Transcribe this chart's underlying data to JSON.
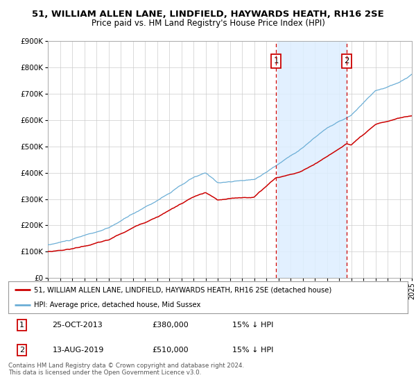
{
  "title": "51, WILLIAM ALLEN LANE, LINDFIELD, HAYWARDS HEATH, RH16 2SE",
  "subtitle": "Price paid vs. HM Land Registry's House Price Index (HPI)",
  "ylim": [
    0,
    900000
  ],
  "yticks": [
    0,
    100000,
    200000,
    300000,
    400000,
    500000,
    600000,
    700000,
    800000,
    900000
  ],
  "ytick_labels": [
    "£0",
    "£100K",
    "£200K",
    "£300K",
    "£400K",
    "£500K",
    "£600K",
    "£700K",
    "£800K",
    "£900K"
  ],
  "hpi_color": "#6baed6",
  "price_color": "#cc0000",
  "shade_color": "#ddeeff",
  "vline_color": "#cc0000",
  "purchase1_year": 2013.82,
  "purchase1_price": 380000,
  "purchase2_year": 2019.62,
  "purchase2_price": 510000,
  "legend_line1": "51, WILLIAM ALLEN LANE, LINDFIELD, HAYWARDS HEATH, RH16 2SE (detached house)",
  "legend_line2": "HPI: Average price, detached house, Mid Sussex",
  "annotation1_num": "1",
  "annotation1_date": "25-OCT-2013",
  "annotation1_price": "£380,000",
  "annotation1_hpi": "15% ↓ HPI",
  "annotation2_num": "2",
  "annotation2_date": "13-AUG-2019",
  "annotation2_price": "£510,000",
  "annotation2_hpi": "15% ↓ HPI",
  "footer": "Contains HM Land Registry data © Crown copyright and database right 2024.\nThis data is licensed under the Open Government Licence v3.0.",
  "background_color": "#ffffff",
  "grid_color": "#cccccc",
  "hpi_keypoints_t": [
    1995,
    1997,
    2000,
    2004,
    2007,
    2008,
    2009,
    2012,
    2014,
    2016,
    2018,
    2020,
    2022,
    2024,
    2025
  ],
  "hpi_keypoints_v": [
    125000,
    145000,
    185000,
    290000,
    375000,
    390000,
    355000,
    365000,
    425000,
    490000,
    565000,
    610000,
    700000,
    730000,
    760000
  ],
  "price_keypoints_t": [
    1995,
    1997,
    2000,
    2004,
    2007,
    2008,
    2009,
    2012,
    2013.82,
    2014,
    2016,
    2018,
    2019.62,
    2020,
    2022,
    2024,
    2025
  ],
  "price_keypoints_v": [
    100000,
    112000,
    145000,
    235000,
    310000,
    325000,
    295000,
    305000,
    380000,
    380000,
    405000,
    460000,
    510000,
    505000,
    575000,
    600000,
    608000
  ]
}
